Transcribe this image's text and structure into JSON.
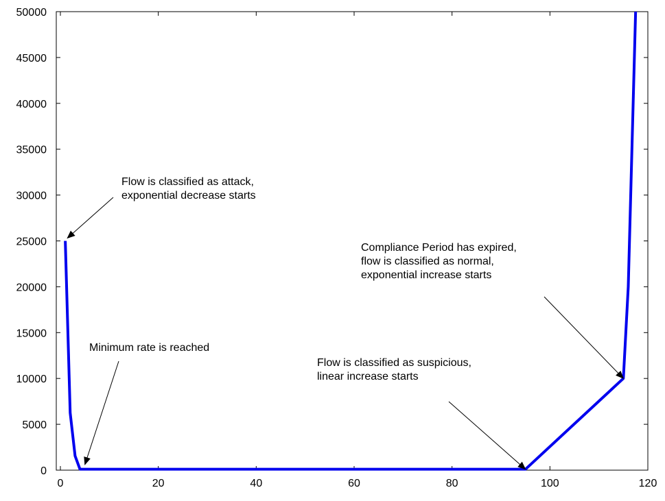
{
  "chart_data": {
    "type": "line",
    "title": "",
    "xlabel": "",
    "ylabel": "",
    "xlim": [
      0,
      120
    ],
    "ylim": [
      0,
      50000
    ],
    "grid": false,
    "x_ticks": [
      0,
      20,
      40,
      60,
      80,
      100,
      120
    ],
    "y_ticks": [
      0,
      5000,
      10000,
      15000,
      20000,
      25000,
      30000,
      35000,
      40000,
      45000,
      50000
    ],
    "series": [
      {
        "color": "#0000ee",
        "x": [
          1,
          2,
          3,
          4,
          95,
          115,
          116,
          117,
          117.5
        ],
        "y": [
          25000,
          6250,
          1560,
          100,
          100,
          10000,
          20000,
          40000,
          50000
        ]
      }
    ],
    "annotations": [
      {
        "lines": [
          "Flow is classified as attack,",
          "exponential decrease starts"
        ],
        "point": [
          1,
          25000
        ]
      },
      {
        "lines": [
          "Minimum rate is reached"
        ],
        "point": [
          5,
          600
        ]
      },
      {
        "lines": [
          "Flow is classified as suspicious,",
          "linear increase starts"
        ],
        "point": [
          95,
          100
        ]
      },
      {
        "lines": [
          "Compliance Period has expired,",
          "flow is classified as normal,",
          "exponential increase starts"
        ],
        "point": [
          115,
          10000
        ]
      }
    ]
  }
}
